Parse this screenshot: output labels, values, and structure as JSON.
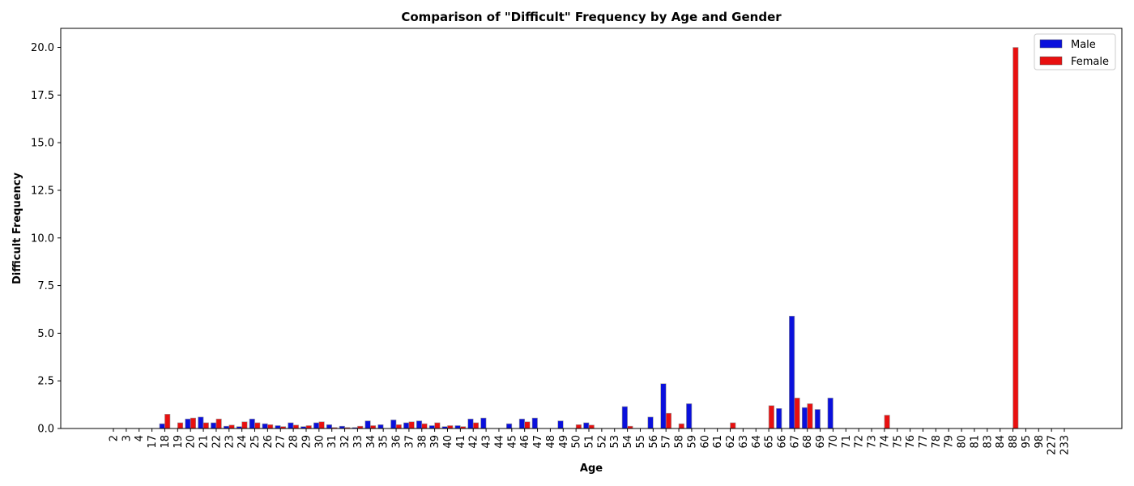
{
  "chart_data": {
    "type": "bar",
    "title": "Comparison of \"Difficult\" Frequency by Age and Gender",
    "xlabel": "Age",
    "ylabel": "Difficult Frequency",
    "ylim": [
      0,
      21
    ],
    "yticks": [
      "0.0",
      "2.5",
      "5.0",
      "7.5",
      "10.0",
      "12.5",
      "15.0",
      "17.5",
      "20.0"
    ],
    "legend_position": "top-right",
    "grid": false,
    "categories": [
      "2",
      "3",
      "4",
      "17",
      "18",
      "19",
      "20",
      "21",
      "22",
      "23",
      "24",
      "25",
      "26",
      "27",
      "28",
      "29",
      "30",
      "31",
      "32",
      "33",
      "34",
      "35",
      "36",
      "37",
      "38",
      "39",
      "40",
      "41",
      "42",
      "43",
      "44",
      "45",
      "46",
      "47",
      "48",
      "49",
      "50",
      "51",
      "52",
      "53",
      "54",
      "55",
      "56",
      "57",
      "58",
      "59",
      "60",
      "61",
      "62",
      "63",
      "64",
      "65",
      "66",
      "67",
      "68",
      "69",
      "70",
      "71",
      "72",
      "73",
      "74",
      "75",
      "76",
      "77",
      "78",
      "79",
      "80",
      "81",
      "83",
      "84",
      "88",
      "95",
      "98",
      "227",
      "233"
    ],
    "series": [
      {
        "name": "Male",
        "color": "#0a10dc",
        "values": [
          0,
          0,
          0,
          0,
          0.25,
          0,
          0.5,
          0.6,
          0.3,
          0.12,
          0.1,
          0.5,
          0.25,
          0.15,
          0.3,
          0.1,
          0.3,
          0.2,
          0.12,
          0.05,
          0.4,
          0.2,
          0.45,
          0.3,
          0.4,
          0.15,
          0.1,
          0.15,
          0.5,
          0.55,
          0,
          0.25,
          0.5,
          0.55,
          0,
          0.4,
          0,
          0.3,
          0,
          0,
          1.15,
          0,
          0.6,
          2.35,
          0,
          1.3,
          0,
          0,
          0,
          0,
          0,
          0,
          1.05,
          5.9,
          1.1,
          1.0,
          1.6,
          0,
          0,
          0,
          0,
          0,
          0,
          0,
          0,
          0,
          0,
          0,
          0,
          0,
          0,
          0,
          0,
          0,
          0
        ]
      },
      {
        "name": "Female",
        "color": "#e81010",
        "values": [
          0,
          0,
          0,
          0,
          0.75,
          0.3,
          0.55,
          0.3,
          0.5,
          0.18,
          0.35,
          0.3,
          0.2,
          0.1,
          0.18,
          0.15,
          0.35,
          0.05,
          0.05,
          0.12,
          0.15,
          0,
          0.2,
          0.35,
          0.25,
          0.3,
          0.15,
          0.1,
          0.3,
          0,
          0,
          0,
          0.35,
          0,
          0,
          0,
          0.2,
          0.18,
          0,
          0,
          0.12,
          0,
          0,
          0.8,
          0.25,
          0,
          0,
          0,
          0.3,
          0,
          0,
          1.2,
          0,
          1.6,
          1.3,
          0,
          0,
          0,
          0,
          0,
          0.7,
          0,
          0,
          0,
          0,
          0,
          0,
          0,
          0,
          0,
          20.0,
          0,
          0,
          0,
          0
        ]
      }
    ]
  }
}
